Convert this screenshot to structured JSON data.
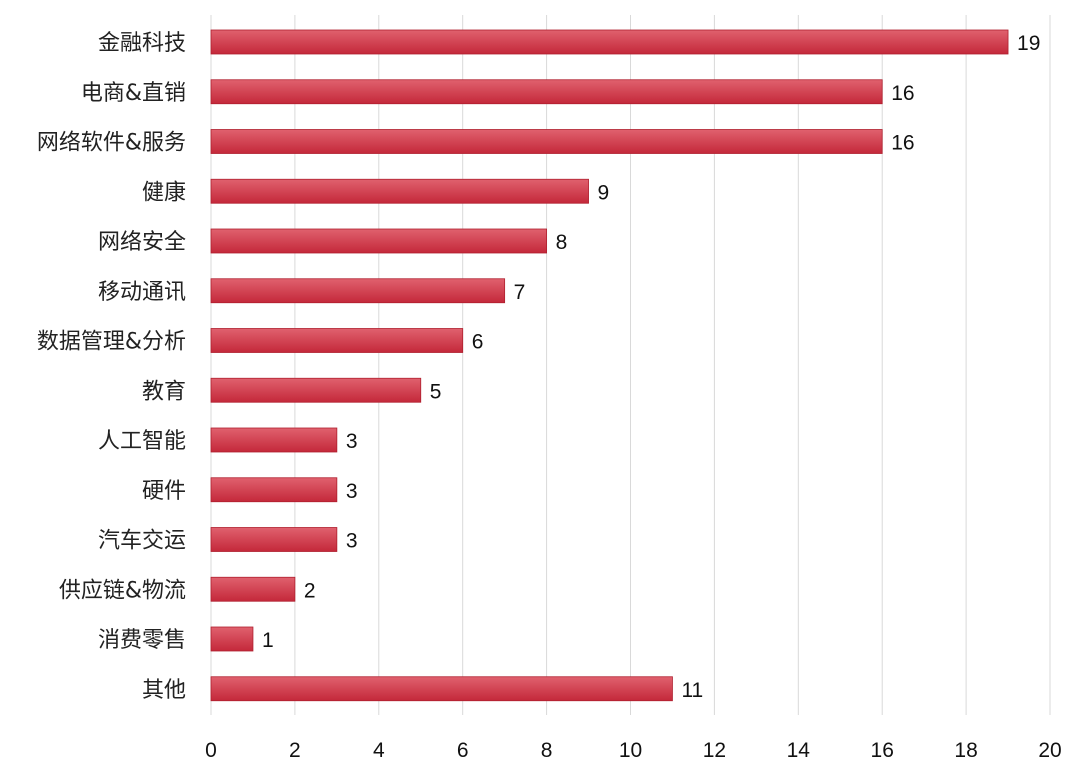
{
  "chart_data": {
    "type": "bar",
    "orientation": "horizontal",
    "categories": [
      "金融科技",
      "电商&直销",
      "网络软件&服务",
      "健康",
      "网络安全",
      "移动通讯",
      "数据管理&分析",
      "教育",
      "人工智能",
      "硬件",
      "汽车交运",
      "供应链&物流",
      "消费零售",
      "其他"
    ],
    "values": [
      19,
      16,
      16,
      9,
      8,
      7,
      6,
      5,
      3,
      3,
      3,
      2,
      1,
      11
    ],
    "xlim": [
      0,
      20
    ],
    "x_ticks": [
      0,
      2,
      4,
      6,
      8,
      10,
      12,
      14,
      16,
      18,
      20
    ],
    "grid": true,
    "colors": {
      "bar_top": "#e0616e",
      "bar_bottom": "#c4283a",
      "bar_edge": "#b0202f"
    }
  }
}
